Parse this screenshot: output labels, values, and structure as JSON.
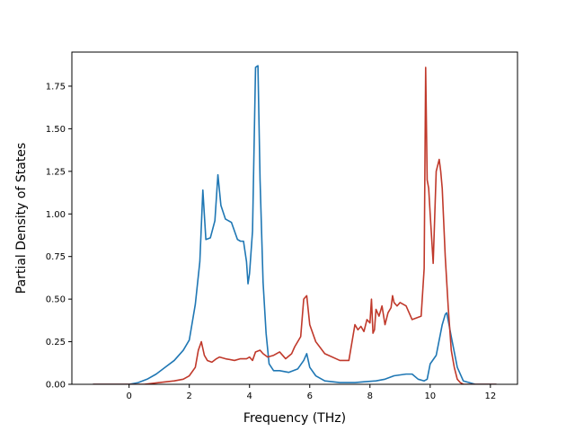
{
  "chart_data": {
    "type": "line",
    "xlabel": "Frequency (THz)",
    "ylabel": "Partial Density of States",
    "xlim": [
      -1.9,
      12.9
    ],
    "ylim": [
      0,
      1.95
    ],
    "xticks": [
      0,
      2,
      4,
      6,
      8,
      10,
      12
    ],
    "yticks": [
      0.0,
      0.25,
      0.5,
      0.75,
      1.0,
      1.25,
      1.5,
      1.75
    ],
    "xtick_labels": [
      "0",
      "2",
      "4",
      "6",
      "8",
      "10",
      "12"
    ],
    "ytick_labels": [
      "0.00",
      "0.25",
      "0.50",
      "0.75",
      "1.00",
      "1.25",
      "1.50",
      "1.75"
    ],
    "grid": false,
    "series": [
      {
        "color": "#1f77b4",
        "x": [
          -1.2,
          0.0,
          0.3,
          0.6,
          0.9,
          1.2,
          1.5,
          1.8,
          2.0,
          2.2,
          2.35,
          2.45,
          2.55,
          2.7,
          2.85,
          2.95,
          3.05,
          3.2,
          3.4,
          3.5,
          3.6,
          3.7,
          3.8,
          3.9,
          3.95,
          4.0,
          4.1,
          4.2,
          4.28,
          4.35,
          4.45,
          4.55,
          4.65,
          4.8,
          5.0,
          5.3,
          5.6,
          5.8,
          5.9,
          6.0,
          6.2,
          6.5,
          7.0,
          7.5,
          7.8,
          8.2,
          8.5,
          8.8,
          9.2,
          9.4,
          9.6,
          9.8,
          9.9,
          10.0,
          10.2,
          10.4,
          10.5,
          10.55,
          10.7,
          10.9,
          11.1,
          11.5,
          12.2
        ],
        "y": [
          0.0,
          0.0,
          0.01,
          0.03,
          0.06,
          0.1,
          0.14,
          0.2,
          0.26,
          0.47,
          0.72,
          1.14,
          0.85,
          0.86,
          0.96,
          1.23,
          1.05,
          0.97,
          0.95,
          0.9,
          0.85,
          0.84,
          0.84,
          0.72,
          0.59,
          0.65,
          0.9,
          1.86,
          1.87,
          1.2,
          0.6,
          0.3,
          0.12,
          0.08,
          0.08,
          0.07,
          0.09,
          0.14,
          0.18,
          0.1,
          0.05,
          0.02,
          0.01,
          0.01,
          0.015,
          0.02,
          0.03,
          0.05,
          0.06,
          0.06,
          0.03,
          0.02,
          0.03,
          0.12,
          0.17,
          0.35,
          0.41,
          0.42,
          0.28,
          0.1,
          0.02,
          0.0,
          0.0
        ]
      },
      {
        "color": "#c0392b",
        "x": [
          -1.2,
          0.5,
          1.0,
          1.5,
          1.8,
          2.0,
          2.2,
          2.3,
          2.4,
          2.5,
          2.6,
          2.75,
          2.9,
          3.0,
          3.2,
          3.5,
          3.7,
          3.9,
          4.0,
          4.1,
          4.2,
          4.35,
          4.45,
          4.6,
          4.8,
          5.0,
          5.2,
          5.4,
          5.5,
          5.7,
          5.8,
          5.9,
          6.0,
          6.2,
          6.5,
          7.0,
          7.3,
          7.5,
          7.6,
          7.7,
          7.8,
          7.9,
          8.0,
          8.05,
          8.1,
          8.15,
          8.2,
          8.3,
          8.4,
          8.5,
          8.6,
          8.7,
          8.75,
          8.8,
          8.9,
          9.0,
          9.2,
          9.4,
          9.7,
          9.8,
          9.85,
          9.9,
          9.95,
          10.0,
          10.1,
          10.2,
          10.3,
          10.35,
          10.4,
          10.5,
          10.6,
          10.7,
          10.8,
          10.9,
          11.0,
          11.1,
          11.3,
          12.2
        ],
        "y": [
          0.0,
          0.0,
          0.01,
          0.02,
          0.03,
          0.05,
          0.1,
          0.2,
          0.25,
          0.17,
          0.14,
          0.13,
          0.15,
          0.16,
          0.15,
          0.14,
          0.15,
          0.15,
          0.16,
          0.14,
          0.19,
          0.2,
          0.18,
          0.16,
          0.17,
          0.19,
          0.15,
          0.18,
          0.22,
          0.28,
          0.5,
          0.52,
          0.35,
          0.25,
          0.18,
          0.14,
          0.14,
          0.35,
          0.32,
          0.34,
          0.31,
          0.38,
          0.36,
          0.5,
          0.3,
          0.32,
          0.44,
          0.4,
          0.46,
          0.35,
          0.42,
          0.45,
          0.52,
          0.48,
          0.46,
          0.48,
          0.46,
          0.38,
          0.4,
          0.68,
          1.86,
          1.2,
          1.15,
          1.0,
          0.71,
          1.25,
          1.32,
          1.25,
          1.15,
          0.75,
          0.45,
          0.2,
          0.1,
          0.03,
          0.01,
          0.0,
          0.0,
          0.0
        ]
      }
    ]
  }
}
